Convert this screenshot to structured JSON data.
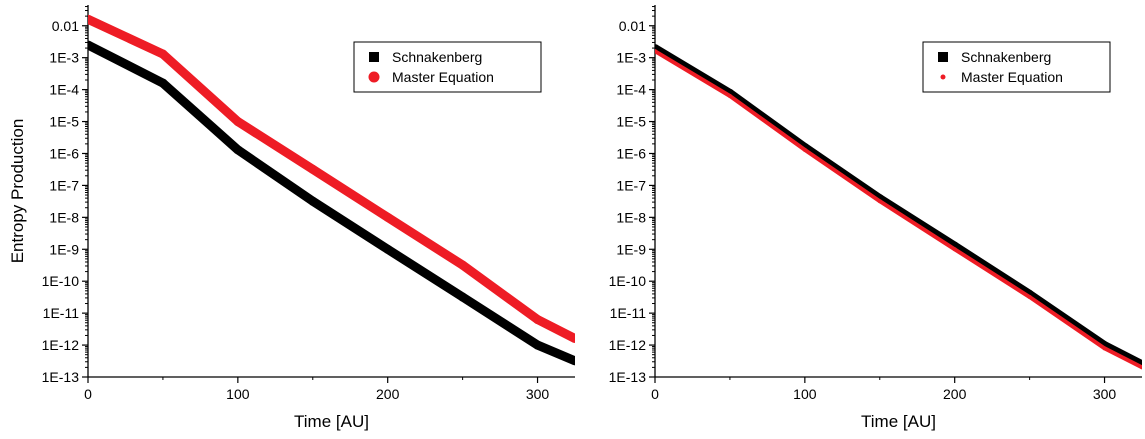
{
  "chart_data": [
    {
      "type": "scatter",
      "title": "",
      "xlabel": "Time [AU]",
      "ylabel": "Entropy Production",
      "xlim": [
        0,
        325
      ],
      "ylim_log10": [
        -13,
        -1.35
      ],
      "y_scale": "log",
      "x_ticks": [
        0,
        100,
        200,
        300
      ],
      "x_tick_labels": [
        "0",
        "100",
        "200",
        "300"
      ],
      "y_ticks_log10": [
        -2,
        -3,
        -4,
        -5,
        -6,
        -7,
        -8,
        -9,
        -10,
        -11,
        -12,
        -13
      ],
      "y_tick_labels": [
        "0.01",
        "1E-3",
        "1E-4",
        "1E-5",
        "1E-6",
        "1E-7",
        "1E-8",
        "1E-9",
        "1E-10",
        "1E-11",
        "1E-12",
        "1E-13"
      ],
      "legend_position": "top-right",
      "series": [
        {
          "name": "Schnakenberg",
          "marker": "square",
          "color": "#000000",
          "x": [
            0,
            50,
            100,
            150,
            200,
            250,
            300,
            325
          ],
          "y": [
            0.0025,
            0.00016,
            1.3e-06,
            3.2e-08,
            1e-09,
            3.2e-11,
            1e-12,
            3.2e-13
          ]
        },
        {
          "name": "Master Equation",
          "marker": "circle",
          "color": "#ee1c25",
          "x": [
            0,
            50,
            100,
            150,
            200,
            250,
            300,
            325
          ],
          "y": [
            0.016,
            0.0013,
            1e-05,
            3.2e-07,
            1e-08,
            3.2e-10,
            6.3e-12,
            1.6e-12
          ]
        }
      ]
    },
    {
      "type": "scatter",
      "title": "",
      "xlabel": "Time [AU]",
      "ylabel": "",
      "xlim": [
        0,
        325
      ],
      "ylim_log10": [
        -13,
        -1.35
      ],
      "y_scale": "log",
      "x_ticks": [
        0,
        100,
        200,
        300
      ],
      "x_tick_labels": [
        "0",
        "100",
        "200",
        "300"
      ],
      "y_ticks_log10": [
        -2,
        -3,
        -4,
        -5,
        -6,
        -7,
        -8,
        -9,
        -10,
        -11,
        -12,
        -13
      ],
      "y_tick_labels": [
        "0.01",
        "1E-3",
        "1E-4",
        "1E-5",
        "1E-6",
        "1E-7",
        "1E-8",
        "1E-9",
        "1E-10",
        "1E-11",
        "1E-12",
        "1E-13"
      ],
      "legend_position": "top-right",
      "series": [
        {
          "name": "Schnakenberg",
          "marker": "square",
          "color": "#000000",
          "x": [
            0,
            50,
            100,
            150,
            200,
            250,
            300,
            325
          ],
          "y": [
            0.002,
            7.9e-05,
            1.6e-06,
            4e-08,
            1.3e-09,
            4e-11,
            1e-12,
            2.5e-13
          ]
        },
        {
          "name": "Master Equation",
          "marker": "circle-small",
          "color": "#ee1c25",
          "x": [
            0,
            50,
            100,
            150,
            200,
            250,
            300,
            325
          ],
          "y": [
            0.0016,
            6.3e-05,
            1.3e-06,
            3.2e-08,
            1e-09,
            3.2e-11,
            7.9e-13,
            2e-13
          ]
        }
      ]
    }
  ]
}
